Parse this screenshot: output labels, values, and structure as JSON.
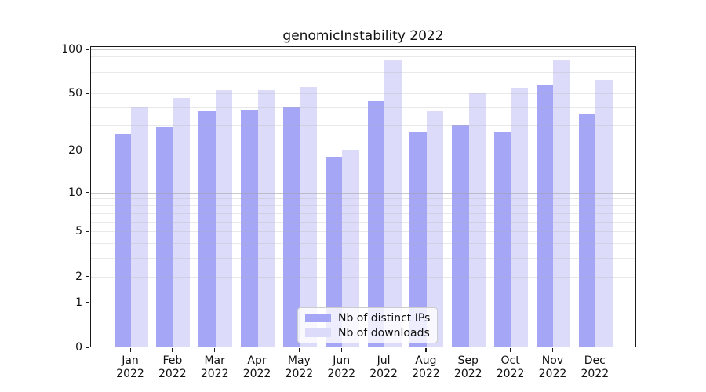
{
  "title": "genomicInstability 2022",
  "chart_data": {
    "type": "bar",
    "title": "genomicInstability 2022",
    "categories": [
      "Jan 2022",
      "Feb 2022",
      "Mar 2022",
      "Apr 2022",
      "May 2022",
      "Jun 2022",
      "Jul 2022",
      "Aug 2022",
      "Sep 2022",
      "Oct 2022",
      "Nov 2022",
      "Dec 2022"
    ],
    "x_tick_month": [
      "Jan",
      "Feb",
      "Mar",
      "Apr",
      "May",
      "Jun",
      "Jul",
      "Aug",
      "Sep",
      "Oct",
      "Nov",
      "Dec"
    ],
    "x_tick_year": "2022",
    "series": [
      {
        "name": "Nb of distinct IPs",
        "color": "#a6a6f7",
        "values": [
          26,
          29,
          37,
          38,
          40,
          18,
          44,
          27,
          30,
          27,
          56,
          36
        ]
      },
      {
        "name": "Nb of downloads",
        "color": "#dcdcfa",
        "values": [
          40,
          46,
          52,
          52,
          55,
          20,
          84,
          37,
          50,
          54,
          84,
          61
        ]
      }
    ],
    "y_scale": "log1p",
    "y_ticks": [
      0,
      1,
      2,
      5,
      10,
      20,
      50,
      100
    ],
    "y_major_grid": [
      1,
      10,
      100
    ],
    "y_minor_grid": [
      2,
      3,
      4,
      5,
      6,
      7,
      8,
      9,
      20,
      30,
      40,
      50,
      60,
      70,
      80,
      90
    ],
    "ylim": [
      0,
      100
    ],
    "grid": true,
    "legend_position": "lower center",
    "colors": {
      "major_grid": "rgba(160,160,160,0.55)",
      "minor_grid": "rgba(176,176,176,0.28)",
      "spine": "#1a1a1a",
      "text": "#111111"
    }
  }
}
